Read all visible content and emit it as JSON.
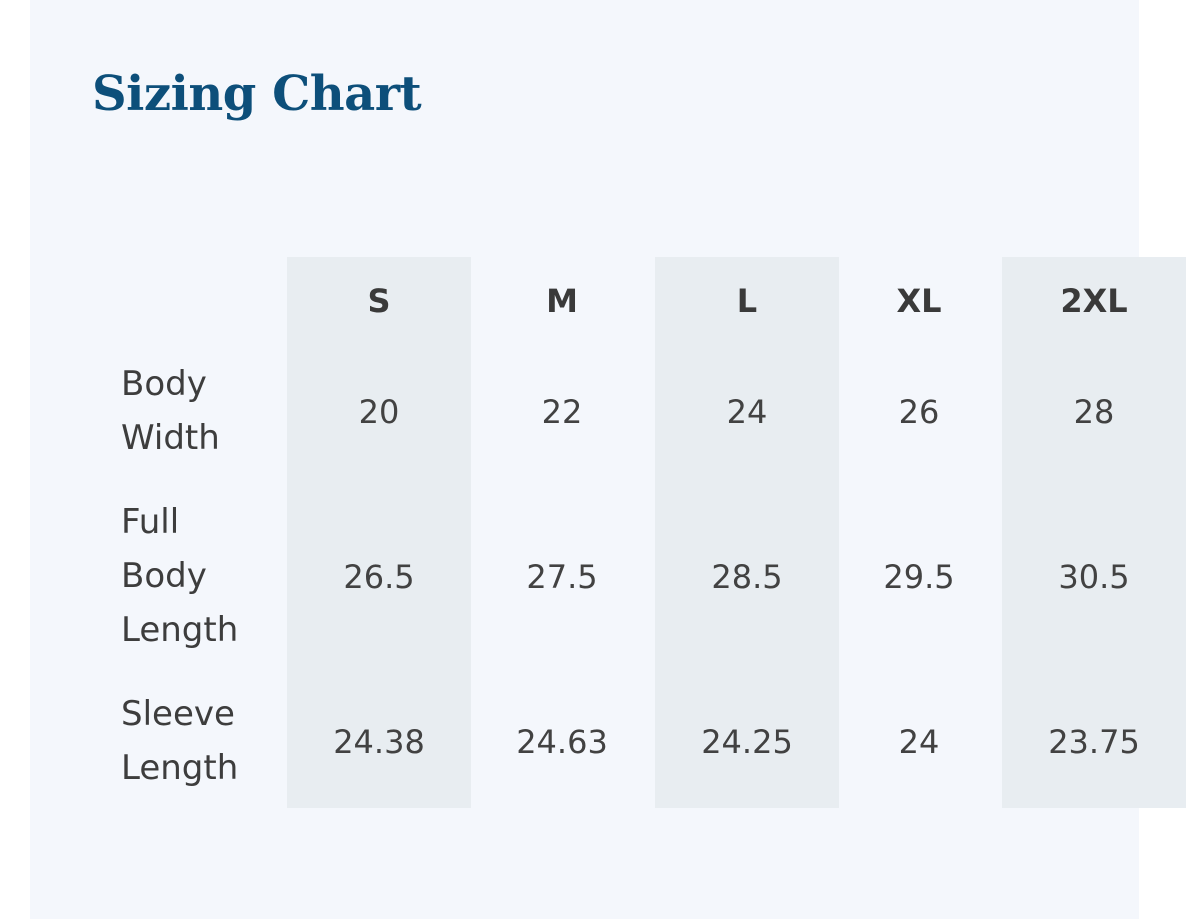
{
  "title": "Sizing Chart",
  "table": {
    "sizes": [
      "S",
      "M",
      "L",
      "XL",
      "2XL"
    ],
    "rows": [
      {
        "label": "Body Width",
        "values": [
          "20",
          "22",
          "24",
          "26",
          "28"
        ]
      },
      {
        "label": "Full Body Length",
        "values": [
          "26.5",
          "27.5",
          "28.5",
          "29.5",
          "30.5"
        ]
      },
      {
        "label": "Sleeve Length",
        "values": [
          "24.38",
          "24.63",
          "24.25",
          "24",
          "23.75"
        ]
      }
    ]
  },
  "colors": {
    "title": "#0d4f7a",
    "panel_background": "#f4f7fc",
    "shaded_column": "#e8edf1",
    "text": "#3b3b3b"
  }
}
